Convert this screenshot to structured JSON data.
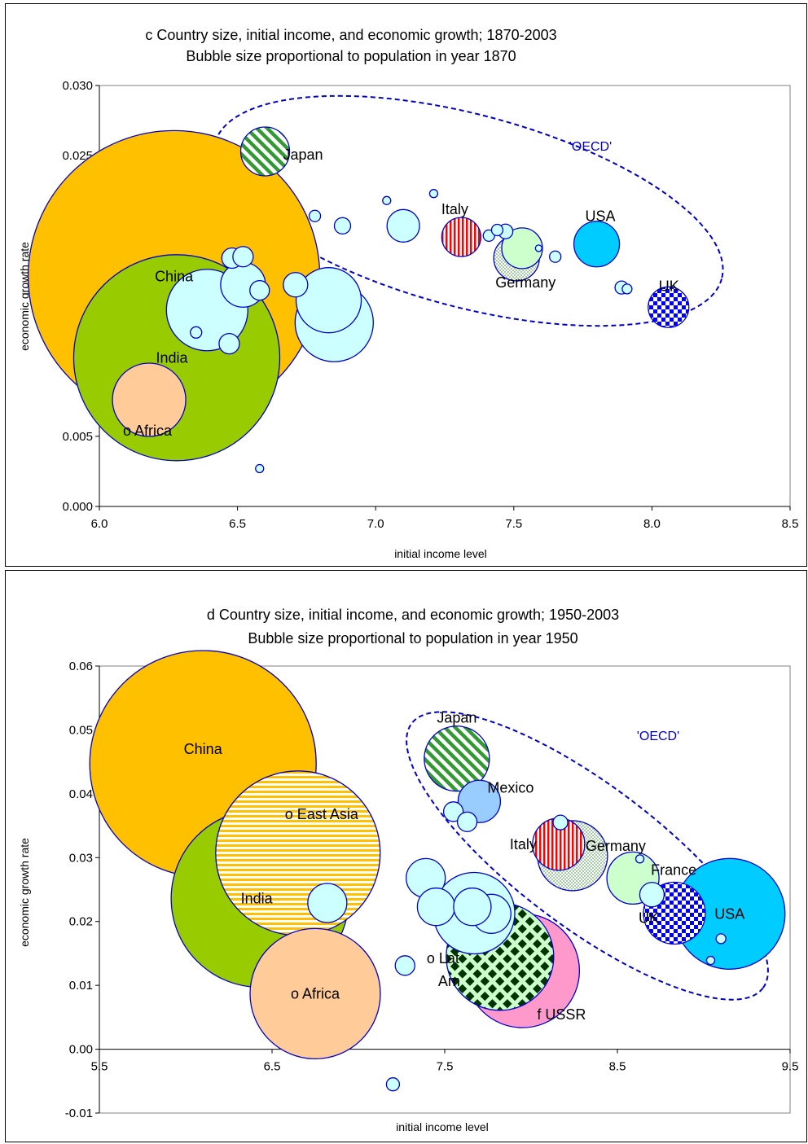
{
  "chart_data": [
    {
      "type": "scatter",
      "title": "c Country size, initial income, and economic growth; 1870-2003",
      "subtitle": "Bubble size proportional to population in year 1870",
      "xlabel": "initial income level",
      "ylabel": "economic growth rate",
      "xlim": [
        6.0,
        8.5
      ],
      "ylim": [
        0.0,
        0.03
      ],
      "xticks": [
        "6.0",
        "6.5",
        "7.0",
        "7.5",
        "8.0",
        "8.5"
      ],
      "yticks": [
        "0.000",
        "0.005",
        "0.010",
        "0.015",
        "0.020",
        "0.025",
        "0.030"
      ],
      "group_label": "'OECD'",
      "points": [
        {
          "label": "China",
          "x": 6.27,
          "y": 0.0164,
          "size": 358,
          "fill": "#FFC000",
          "pattern": "solid"
        },
        {
          "label": "India",
          "x": 6.28,
          "y": 0.0106,
          "size": 253,
          "fill": "#99CC00",
          "pattern": "solid"
        },
        {
          "label": "o Africa",
          "x": 6.18,
          "y": 0.0076,
          "size": 90,
          "fill": "#FFCC99",
          "pattern": "solid"
        },
        {
          "label": "",
          "x": 6.39,
          "y": 0.014,
          "size": 100,
          "fill": "#CCFFFF",
          "pattern": "solid"
        },
        {
          "label": "",
          "x": 6.52,
          "y": 0.0158,
          "size": 55,
          "fill": "#CCFFFF",
          "pattern": "solid"
        },
        {
          "label": "",
          "x": 6.48,
          "y": 0.0177,
          "size": 25,
          "fill": "#CCFFFF",
          "pattern": "solid"
        },
        {
          "label": "",
          "x": 6.52,
          "y": 0.0178,
          "size": 25,
          "fill": "#CCFFFF",
          "pattern": "solid"
        },
        {
          "label": "",
          "x": 6.58,
          "y": 0.0154,
          "size": 24,
          "fill": "#CCFFFF",
          "pattern": "solid"
        },
        {
          "label": "",
          "x": 6.47,
          "y": 0.0116,
          "size": 25,
          "fill": "#CCFFFF",
          "pattern": "solid"
        },
        {
          "label": "",
          "x": 6.35,
          "y": 0.0124,
          "size": 14,
          "fill": "#CCFFFF",
          "pattern": "solid"
        },
        {
          "label": "",
          "x": 6.58,
          "y": 0.0027,
          "size": 10,
          "fill": "#CCFFFF",
          "pattern": "solid"
        },
        {
          "label": "",
          "x": 6.71,
          "y": 0.0158,
          "size": 30,
          "fill": "#CCFFFF",
          "pattern": "solid"
        },
        {
          "label": "",
          "x": 6.83,
          "y": 0.0147,
          "size": 80,
          "fill": "#CCFFFF",
          "pattern": "solid"
        },
        {
          "label": "",
          "x": 6.85,
          "y": 0.0131,
          "size": 96,
          "fill": "#CCFFFF",
          "pattern": "solid"
        },
        {
          "label": "Japan",
          "x": 6.6,
          "y": 0.0253,
          "size": 60,
          "fill": "#339933",
          "pattern": "diagonal"
        },
        {
          "label": "",
          "x": 6.78,
          "y": 0.0207,
          "size": 14,
          "fill": "#CCFFFF",
          "pattern": "solid"
        },
        {
          "label": "",
          "x": 6.88,
          "y": 0.02,
          "size": 20,
          "fill": "#CCFFFF",
          "pattern": "solid"
        },
        {
          "label": "",
          "x": 7.04,
          "y": 0.0218,
          "size": 10,
          "fill": "#CCFFFF",
          "pattern": "solid"
        },
        {
          "label": "",
          "x": 7.1,
          "y": 0.02,
          "size": 40,
          "fill": "#CCFFFF",
          "pattern": "solid"
        },
        {
          "label": "",
          "x": 7.21,
          "y": 0.0223,
          "size": 10,
          "fill": "#CCFFFF",
          "pattern": "solid"
        },
        {
          "label": "Italy",
          "x": 7.31,
          "y": 0.0192,
          "size": 48,
          "fill": "#FF0000",
          "pattern": "vertical"
        },
        {
          "label": "",
          "x": 7.41,
          "y": 0.0193,
          "size": 14,
          "fill": "#CCFFFF",
          "pattern": "solid"
        },
        {
          "label": "",
          "x": 7.44,
          "y": 0.0197,
          "size": 14,
          "fill": "#CCFFFF",
          "pattern": "solid"
        },
        {
          "label": "",
          "x": 7.47,
          "y": 0.0196,
          "size": 18,
          "fill": "#CCFFFF",
          "pattern": "solid"
        },
        {
          "label": "",
          "x": 7.53,
          "y": 0.0184,
          "size": 50,
          "fill": "#CCFFCC",
          "pattern": "solid"
        },
        {
          "label": "Germany",
          "x": 7.51,
          "y": 0.0177,
          "size": 56,
          "fill": "#99CC99",
          "pattern": "dots"
        },
        {
          "label": "",
          "x": 7.59,
          "y": 0.0184,
          "size": 8,
          "fill": "#CCFFFF",
          "pattern": "solid"
        },
        {
          "label": "",
          "x": 7.65,
          "y": 0.0178,
          "size": 14,
          "fill": "#CCFFFF",
          "pattern": "solid"
        },
        {
          "label": "USA",
          "x": 7.8,
          "y": 0.0187,
          "size": 56,
          "fill": "#00CCFF",
          "pattern": "solid"
        },
        {
          "label": "",
          "x": 7.89,
          "y": 0.0156,
          "size": 16,
          "fill": "#CCFFFF",
          "pattern": "solid"
        },
        {
          "label": "",
          "x": 7.91,
          "y": 0.0155,
          "size": 12,
          "fill": "#CCFFFF",
          "pattern": "solid"
        },
        {
          "label": "UK",
          "x": 8.06,
          "y": 0.0142,
          "size": 50,
          "fill": "#0000FF",
          "pattern": "checker"
        }
      ]
    },
    {
      "type": "scatter",
      "title": "d Country size, initial income, and economic growth; 1950-2003",
      "subtitle": "Bubble size proportional to population in year 1950",
      "xlabel": "initial income level",
      "ylabel": "economic growth rate",
      "xlim": [
        5.5,
        9.5
      ],
      "ylim": [
        -0.01,
        0.06
      ],
      "xticks": [
        "5.5",
        "6.5",
        "7.5",
        "8.5",
        "9.5"
      ],
      "yticks": [
        "-0.01",
        "0.00",
        "0.01",
        "0.02",
        "0.03",
        "0.04",
        "0.05",
        "0.06"
      ],
      "group_label": "'OECD'",
      "points": [
        {
          "label": "China",
          "x": 6.1,
          "y": 0.0447,
          "size": 278,
          "fill": "#FFC000",
          "pattern": "solid"
        },
        {
          "label": "India",
          "x": 6.43,
          "y": 0.0236,
          "size": 218,
          "fill": "#99CC00",
          "pattern": "solid"
        },
        {
          "label": "o East Asia",
          "x": 6.65,
          "y": 0.0307,
          "size": 202,
          "fill": "#FFC000",
          "pattern": "horizontal"
        },
        {
          "label": "o Africa",
          "x": 6.75,
          "y": 0.0087,
          "size": 160,
          "fill": "#FFCC99",
          "pattern": "solid"
        },
        {
          "label": "",
          "x": 6.82,
          "y": 0.0229,
          "size": 48,
          "fill": "#CCFFFF",
          "pattern": "solid"
        },
        {
          "label": "",
          "x": 7.39,
          "y": 0.0268,
          "size": 48,
          "fill": "#CCFFFF",
          "pattern": "solid"
        },
        {
          "label": "",
          "x": 7.45,
          "y": 0.0223,
          "size": 46,
          "fill": "#CCFFFF",
          "pattern": "solid"
        },
        {
          "label": "",
          "x": 7.67,
          "y": 0.0213,
          "size": 100,
          "fill": "#CCFFFF",
          "pattern": "solid"
        },
        {
          "label": "",
          "x": 7.66,
          "y": 0.0223,
          "size": 46,
          "fill": "#CCFFFF",
          "pattern": "solid"
        },
        {
          "label": "",
          "x": 7.77,
          "y": 0.0212,
          "size": 48,
          "fill": "#CCFFFF",
          "pattern": "solid"
        },
        {
          "label": "",
          "x": 7.27,
          "y": 0.0131,
          "size": 24,
          "fill": "#CCFFFF",
          "pattern": "solid"
        },
        {
          "label": "",
          "x": 7.2,
          "y": -0.0055,
          "size": 16,
          "fill": "#CCFFFF",
          "pattern": "solid"
        },
        {
          "label": "f USSR",
          "x": 7.95,
          "y": 0.0123,
          "size": 140,
          "fill": "#FF99CC",
          "pattern": "solid"
        },
        {
          "label": "o Lat Am",
          "x": 7.82,
          "y": 0.0145,
          "size": 132,
          "fill": "#003300",
          "pattern": "diamond"
        },
        {
          "label": "Japan",
          "x": 7.57,
          "y": 0.0455,
          "size": 80,
          "fill": "#339933",
          "pattern": "diagonal"
        },
        {
          "label": "Mexico",
          "x": 7.7,
          "y": 0.0388,
          "size": 52,
          "fill": "#99CCFF",
          "pattern": "solid"
        },
        {
          "label": "",
          "x": 7.55,
          "y": 0.0372,
          "size": 24,
          "fill": "#CCFFFF",
          "pattern": "solid"
        },
        {
          "label": "",
          "x": 7.63,
          "y": 0.0356,
          "size": 24,
          "fill": "#CCFFFF",
          "pattern": "solid"
        },
        {
          "label": "",
          "x": 8.17,
          "y": 0.0355,
          "size": 18,
          "fill": "#CCFFFF",
          "pattern": "solid"
        },
        {
          "label": "Italy",
          "x": 8.16,
          "y": 0.0321,
          "size": 64,
          "fill": "#FF0000",
          "pattern": "vertical"
        },
        {
          "label": "Germany",
          "x": 8.24,
          "y": 0.0303,
          "size": 86,
          "fill": "#99CC99",
          "pattern": "dots"
        },
        {
          "label": "",
          "x": 8.63,
          "y": 0.0298,
          "size": 10,
          "fill": "#CCFFFF",
          "pattern": "solid"
        },
        {
          "label": "France",
          "x": 8.59,
          "y": 0.0268,
          "size": 64,
          "fill": "#CCFFCC",
          "pattern": "solid"
        },
        {
          "label": "",
          "x": 8.7,
          "y": 0.0242,
          "size": 30,
          "fill": "#CCFFFF",
          "pattern": "solid"
        },
        {
          "label": "UK",
          "x": 8.83,
          "y": 0.0213,
          "size": 76,
          "fill": "#0000FF",
          "pattern": "checker"
        },
        {
          "label": "USA",
          "x": 9.15,
          "y": 0.0212,
          "size": 136,
          "fill": "#00CCFF",
          "pattern": "solid"
        },
        {
          "label": "",
          "x": 9.1,
          "y": 0.0173,
          "size": 12,
          "fill": "#CCFFFF",
          "pattern": "solid"
        },
        {
          "label": "",
          "x": 9.04,
          "y": 0.0139,
          "size": 10,
          "fill": "#CCFFFF",
          "pattern": "solid"
        }
      ]
    }
  ]
}
